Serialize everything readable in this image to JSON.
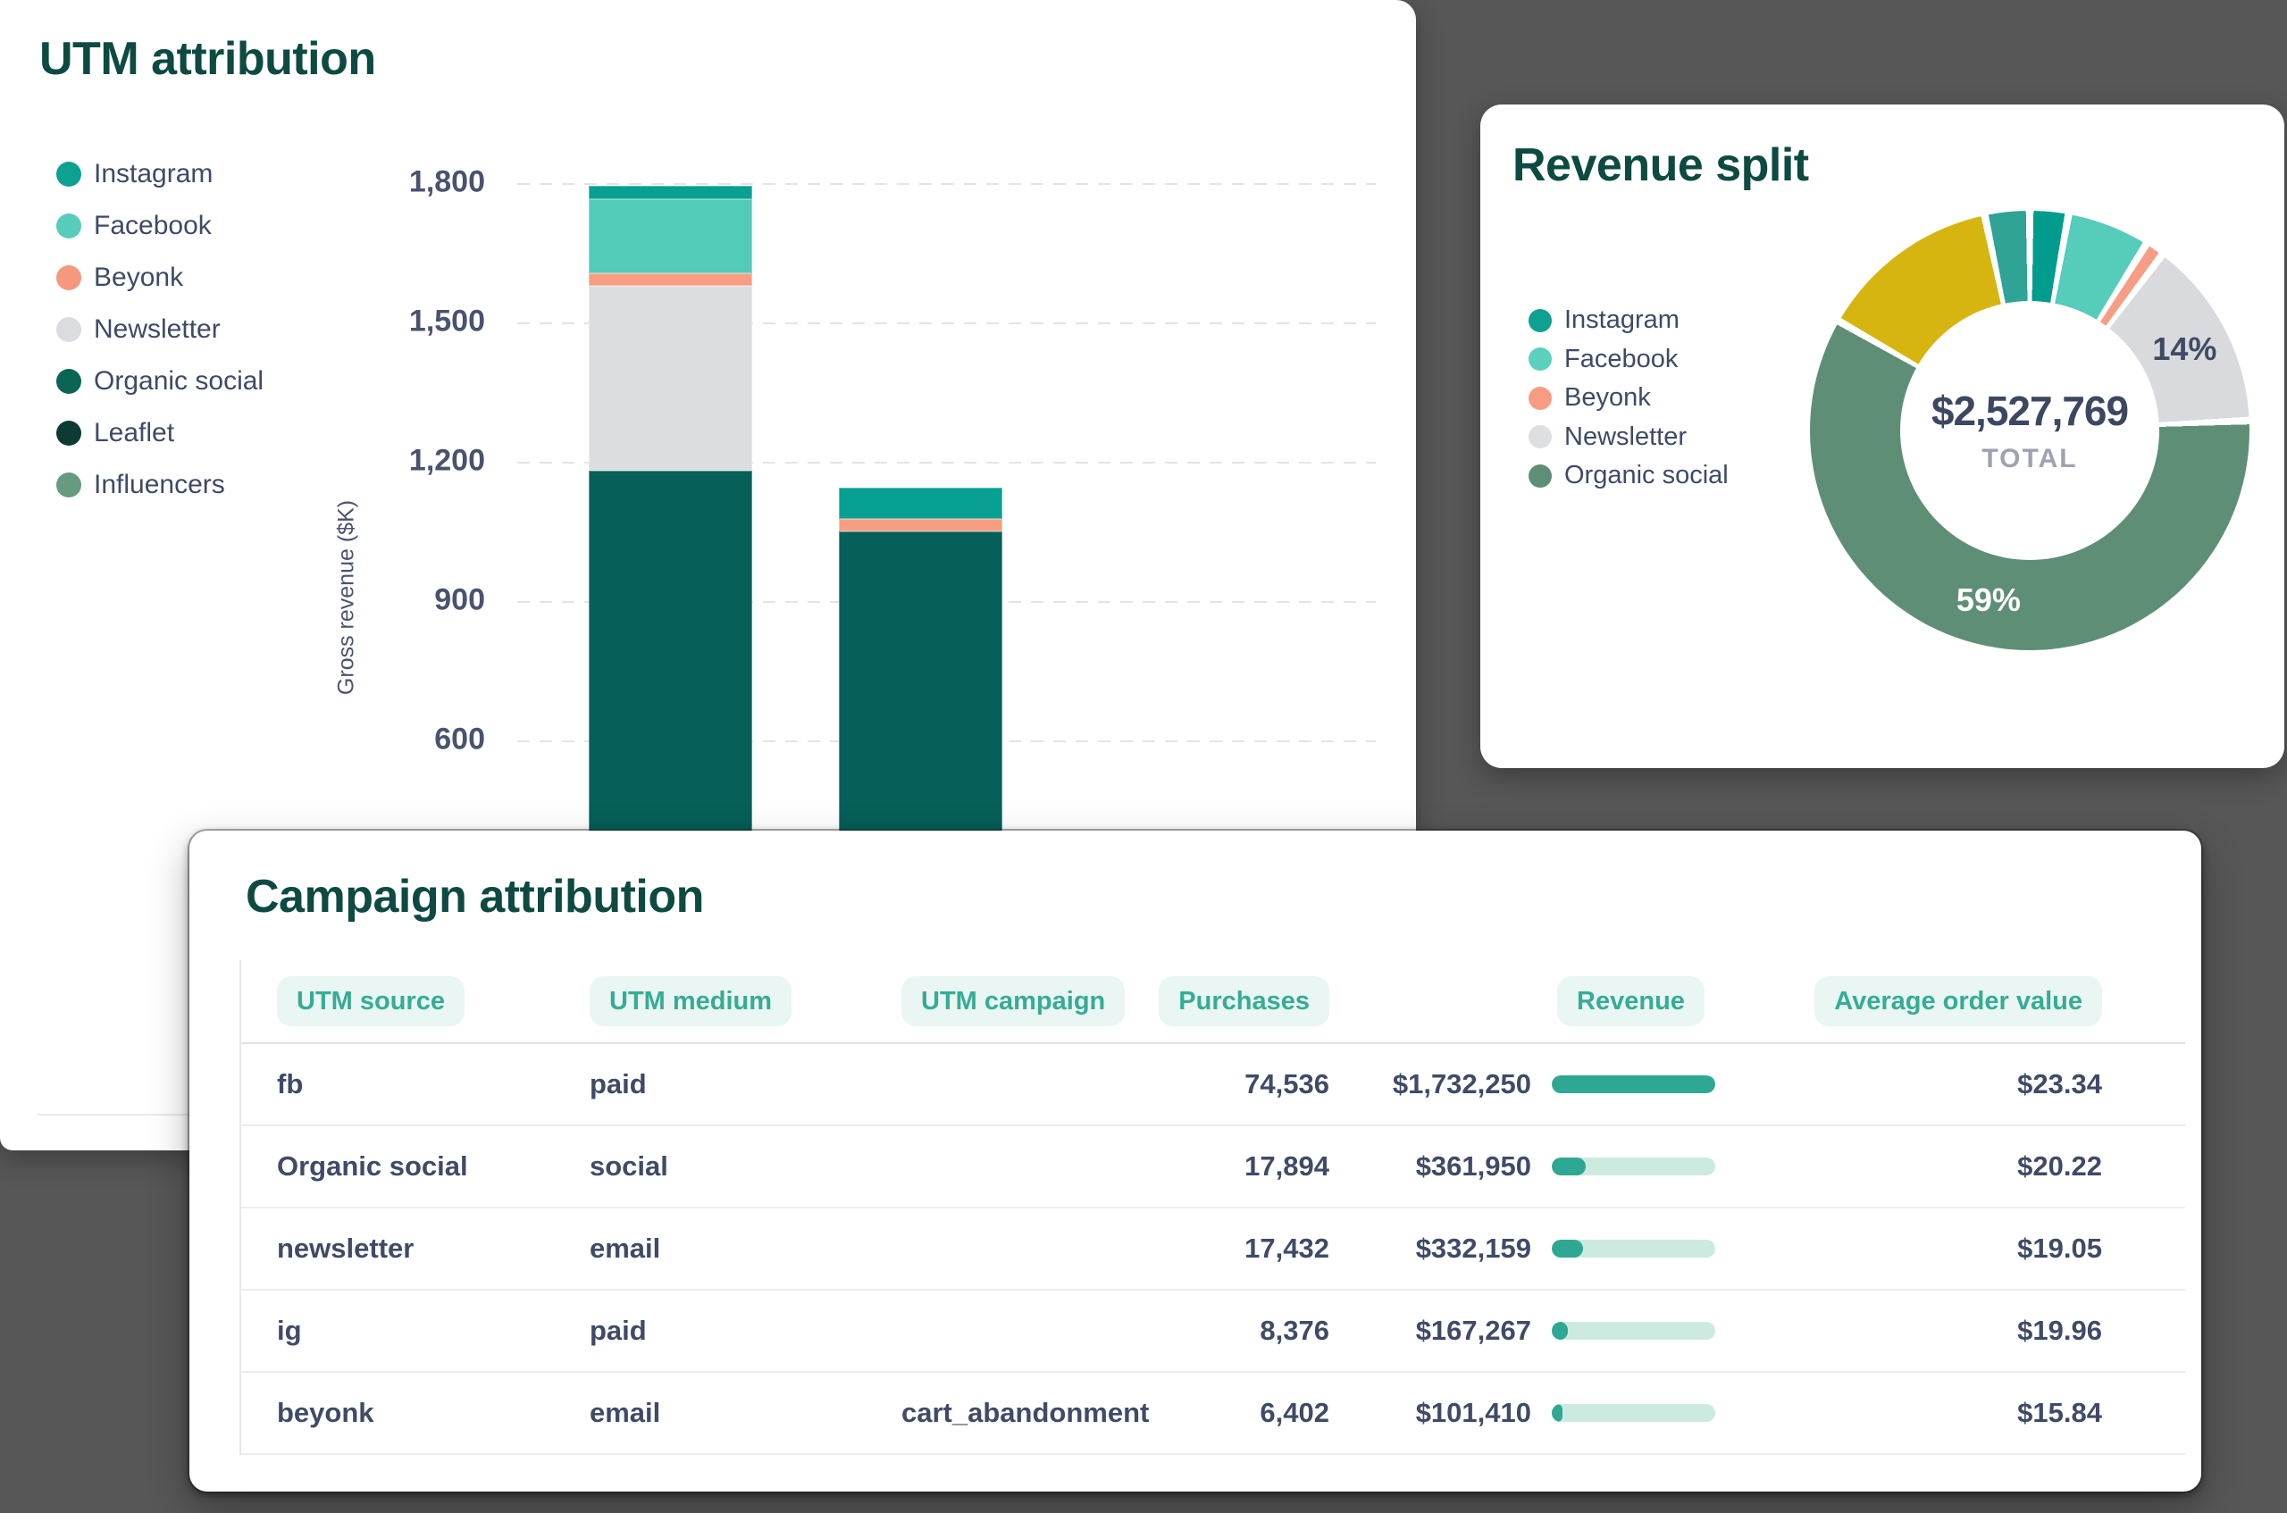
{
  "page": {
    "background_color": "#575757",
    "card_color": "#ffffff"
  },
  "utm_attribution": {
    "title": "UTM attribution",
    "legend": [
      {
        "label": "Instagram",
        "color": "#0da192"
      },
      {
        "label": "Facebook",
        "color": "#57ccba"
      },
      {
        "label": "Beyonk",
        "color": "#f5987d"
      },
      {
        "label": "Newsletter",
        "color": "#dbdce0"
      },
      {
        "label": "Organic social",
        "color": "#0b6553"
      },
      {
        "label": "Leaflet",
        "color": "#0d3b33"
      },
      {
        "label": "Influencers",
        "color": "#679b80"
      }
    ],
    "chart_data": {
      "type": "bar",
      "stacked": true,
      "title": "UTM attribution",
      "xlabel": "",
      "ylabel": "Gross revenue ($K)",
      "ylim": [
        0,
        1800
      ],
      "grid": "dashed horizontal",
      "yticks": [
        {
          "value": 600,
          "label": "600"
        },
        {
          "value": 900,
          "label": "900"
        },
        {
          "value": 1200,
          "label": "1,200"
        },
        {
          "value": 1500,
          "label": "1,500"
        },
        {
          "value": 1800,
          "label": "1,800"
        }
      ],
      "bars": [
        {
          "name": "bar-1",
          "total": 1794,
          "segments": [
            {
              "name": "Organic social",
              "value": 1181,
              "color": "#065f58"
            },
            {
              "name": "Newsletter",
              "value": 398,
              "color": "#dcdde0"
            },
            {
              "name": "Beyonk",
              "value": 27,
              "color": "#f79e82"
            },
            {
              "name": "Facebook",
              "value": 159,
              "color": "#52cbb8"
            },
            {
              "name": "Instagram",
              "value": 29,
              "color": "#07a092"
            }
          ]
        },
        {
          "name": "bar-2",
          "total": 1145,
          "segments": [
            {
              "name": "Organic social",
              "value": 1050,
              "color": "#065f58"
            },
            {
              "name": "Beyonk",
              "value": 27,
              "color": "#f79e82"
            },
            {
              "name": "Instagram",
              "value": 68,
              "color": "#07a092"
            }
          ]
        }
      ]
    }
  },
  "revenue_split": {
    "title": "Revenue split",
    "total_value": "$2,527,769",
    "total_label": "TOTAL",
    "legend": [
      {
        "label": "Instagram",
        "color": "#0ea091"
      },
      {
        "label": "Facebook",
        "color": "#5bd0bc"
      },
      {
        "label": "Beyonk",
        "color": "#f79c83"
      },
      {
        "label": "Newsletter",
        "color": "#dedfe1"
      },
      {
        "label": "Organic social",
        "color": "#5f8e78"
      }
    ],
    "chart_data": {
      "type": "pie",
      "donut": true,
      "title": "Revenue split",
      "total": "$2,527,769",
      "start_angle_deg": 0,
      "segments": [
        {
          "name": "Instagram",
          "percent": 2.83,
          "color": "#019c8d"
        },
        {
          "name": "Facebook",
          "percent": 6.06,
          "color": "#56ccba"
        },
        {
          "name": "Beyonk",
          "percent": 1.39,
          "color": "#f79d85"
        },
        {
          "name": "Newsletter",
          "percent": 14,
          "color": "#d9dadd",
          "label": "14%",
          "label_color": "#3f4b66"
        },
        {
          "name": "Organic social",
          "percent": 59,
          "color": "#5f8e77",
          "label": "59%",
          "label_color": "#ffffff"
        },
        {
          "name": "unlabeled-yellow",
          "percent": 13.44,
          "color": "#d6b511"
        },
        {
          "name": "unlabeled-teal",
          "percent": 3.28,
          "color": "#2ea396"
        }
      ]
    }
  },
  "campaign_attribution": {
    "title": "Campaign attribution",
    "columns": [
      "UTM source",
      "UTM medium",
      "UTM campaign",
      "Purchases",
      "Revenue",
      "Average order value"
    ],
    "rows": [
      {
        "source": "fb",
        "medium": "paid",
        "campaign": "",
        "purchases": "74,536",
        "revenue": "$1,732,250",
        "revenue_ratio": 1.0,
        "aov": "$23.34"
      },
      {
        "source": "Organic social",
        "medium": "social",
        "campaign": "",
        "purchases": "17,894",
        "revenue": "$361,950",
        "revenue_ratio": 0.209,
        "aov": "$20.22"
      },
      {
        "source": "newsletter",
        "medium": "email",
        "campaign": "",
        "purchases": "17,432",
        "revenue": "$332,159",
        "revenue_ratio": 0.192,
        "aov": "$19.05"
      },
      {
        "source": "ig",
        "medium": "paid",
        "campaign": "",
        "purchases": "8,376",
        "revenue": "$167,267",
        "revenue_ratio": 0.097,
        "aov": "$19.96"
      },
      {
        "source": "beyonk",
        "medium": "email",
        "campaign": "cart_abandonment",
        "purchases": "6,402",
        "revenue": "$101,410",
        "revenue_ratio": 0.059,
        "aov": "$15.84"
      }
    ]
  }
}
